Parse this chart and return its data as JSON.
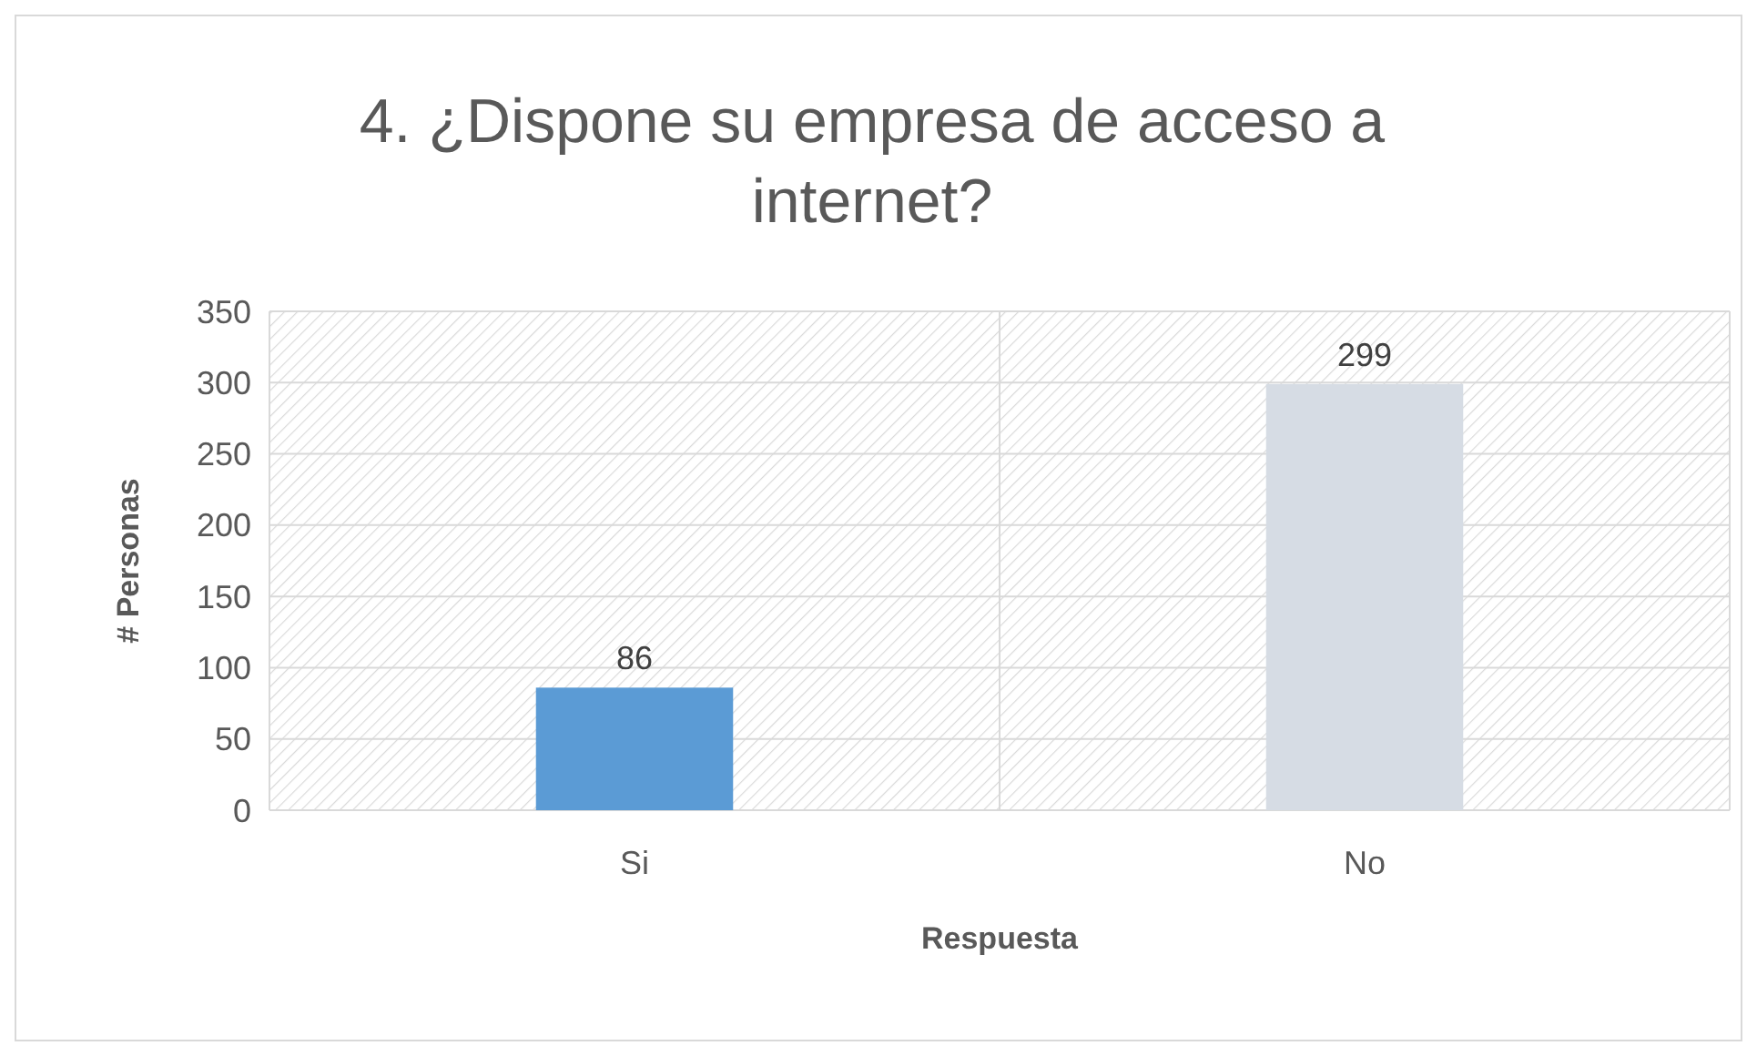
{
  "chart_data": {
    "type": "bar",
    "title": "4. ¿Dispone su empresa de acceso a internet?",
    "xlabel": "Respuesta",
    "ylabel": "# Personas",
    "categories": [
      "Si",
      "No"
    ],
    "values": [
      86,
      299
    ],
    "colors": [
      "#5b9bd5",
      "#d6dce4"
    ],
    "ylim": [
      0,
      350
    ],
    "yticks": [
      0,
      50,
      100,
      150,
      200,
      250,
      300,
      350
    ],
    "grid": true,
    "data_labels": true
  }
}
